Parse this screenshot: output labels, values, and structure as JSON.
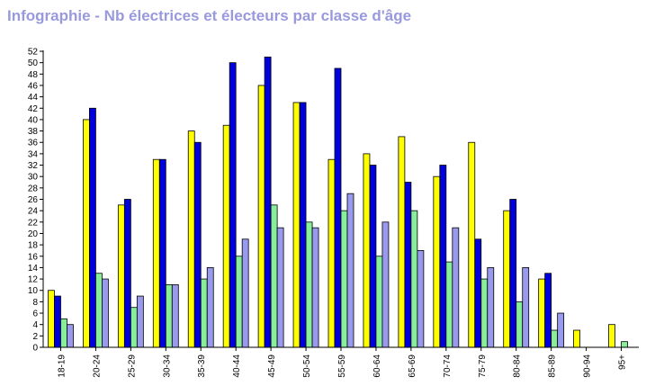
{
  "title": "Infographie - Nb électrices et électeurs par classe d'âge",
  "chart_data": {
    "type": "bar",
    "title": "Infographie - Nb électrices et électeurs par classe d'âge",
    "xlabel": "",
    "ylabel": "",
    "ylim": [
      0,
      52
    ],
    "yticks": [
      0,
      2,
      4,
      6,
      8,
      10,
      12,
      14,
      16,
      18,
      20,
      22,
      24,
      26,
      28,
      30,
      32,
      34,
      36,
      38,
      40,
      42,
      44,
      46,
      48,
      50,
      52
    ],
    "grid": false,
    "legend": "none",
    "categories": [
      "18-19",
      "20-24",
      "25-29",
      "30-34",
      "35-39",
      "40-44",
      "45-49",
      "50-54",
      "55-59",
      "60-64",
      "65-69",
      "70-74",
      "75-79",
      "80-84",
      "85-89",
      "90-94",
      "95+"
    ],
    "series": [
      {
        "color": "#ffff00",
        "values": [
          10,
          40,
          25,
          33,
          38,
          39,
          46,
          43,
          33,
          34,
          37,
          30,
          36,
          24,
          12,
          3,
          4
        ]
      },
      {
        "color": "#0000dd",
        "values": [
          9,
          42,
          26,
          33,
          36,
          50,
          51,
          43,
          49,
          32,
          29,
          32,
          19,
          26,
          13,
          0,
          0
        ]
      },
      {
        "color": "#88ee99",
        "values": [
          5,
          13,
          7,
          11,
          12,
          16,
          25,
          22,
          24,
          16,
          24,
          15,
          12,
          8,
          3,
          0,
          1
        ]
      },
      {
        "color": "#9999ee",
        "values": [
          4,
          12,
          9,
          11,
          14,
          19,
          21,
          21,
          27,
          22,
          17,
          21,
          14,
          14,
          6,
          0,
          0
        ]
      }
    ]
  }
}
